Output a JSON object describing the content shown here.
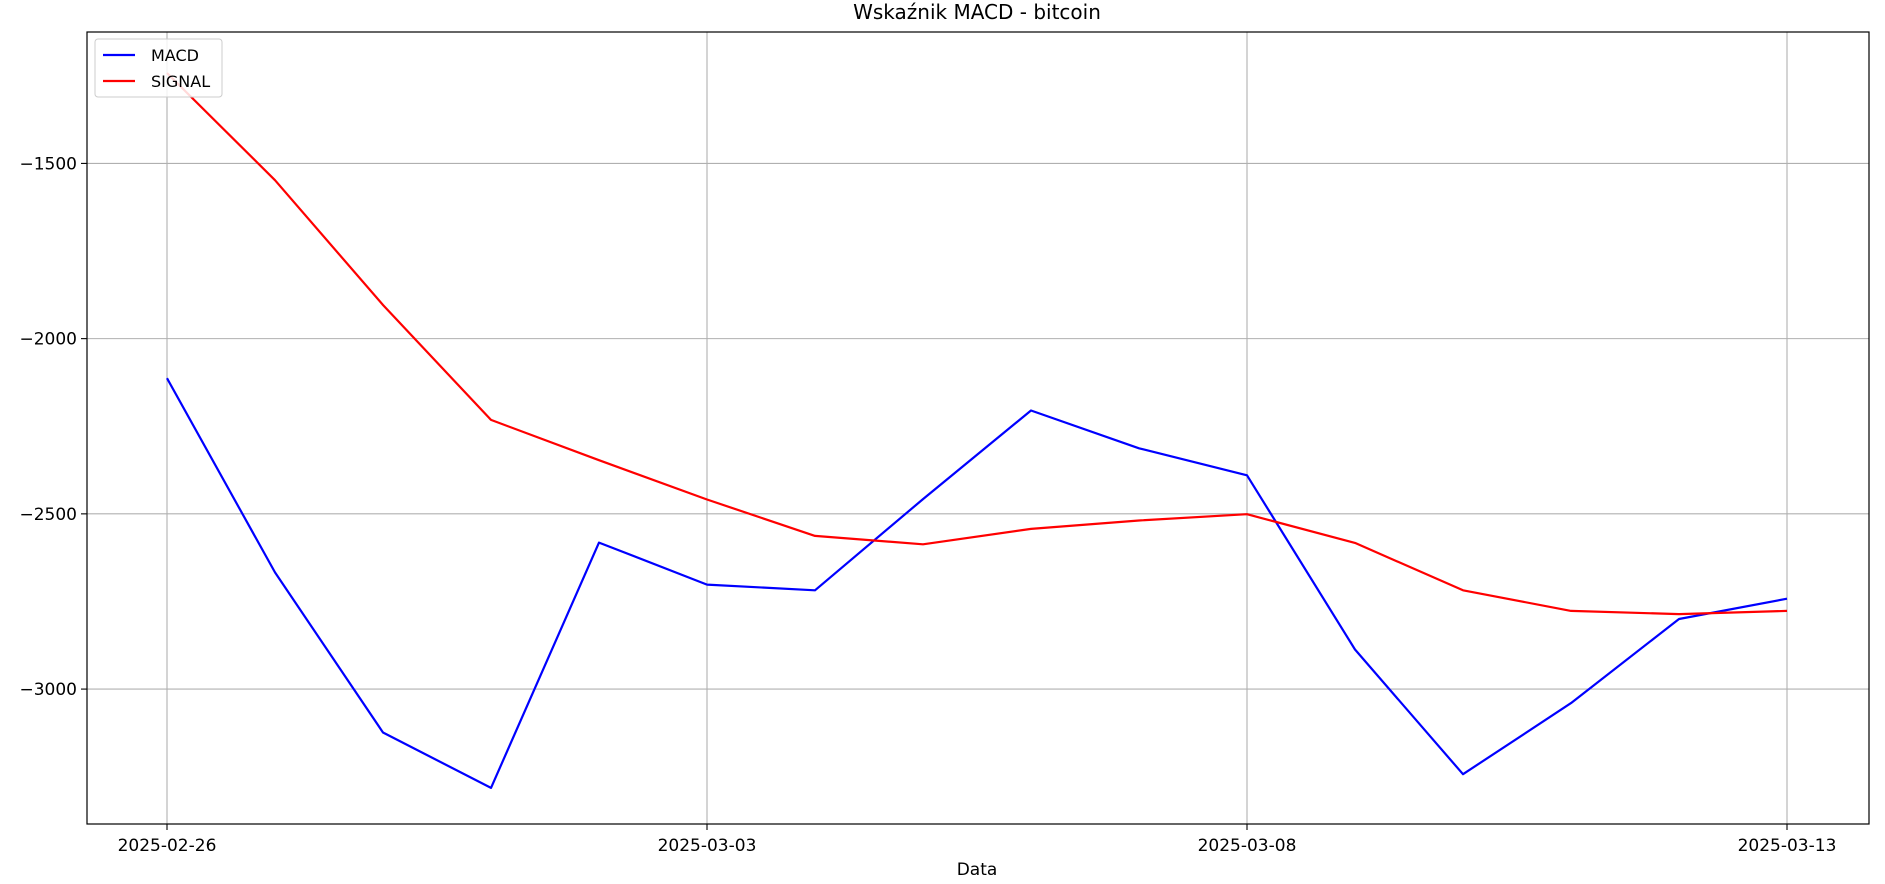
{
  "chart_data": {
    "type": "line",
    "title": "Wskaźnik MACD - bitcoin",
    "xlabel": "Data",
    "ylabel": "",
    "x": [
      "2025-02-26",
      "2025-02-27",
      "2025-02-28",
      "2025-03-01",
      "2025-03-02",
      "2025-03-03",
      "2025-03-04",
      "2025-03-05",
      "2025-03-06",
      "2025-03-07",
      "2025-03-08",
      "2025-03-09",
      "2025-03-10",
      "2025-03-11",
      "2025-03-12",
      "2025-03-13"
    ],
    "x_ticks": [
      "2025-02-26",
      "2025-03-03",
      "2025-03-08",
      "2025-03-13"
    ],
    "y_ticks": [
      -1500,
      -2000,
      -2500,
      -3000
    ],
    "y_tick_labels": [
      "−1500",
      "−2000",
      "−2500",
      "−3000"
    ],
    "ylim": [
      -3385,
      -1125
    ],
    "grid": true,
    "legend_position": "top-left",
    "series": [
      {
        "name": "MACD",
        "color": "#0000ff",
        "values": [
          -2113,
          -2667,
          -3124,
          -3282,
          -2582,
          -2702,
          -2718,
          -2458,
          -2205,
          -2313,
          -2390,
          -2887,
          -3243,
          -3040,
          -2800,
          -2742
        ]
      },
      {
        "name": "SIGNAL",
        "color": "#ff0000",
        "values": [
          -1242,
          -1548,
          -1904,
          -2232,
          -2347,
          -2459,
          -2563,
          -2587,
          -2543,
          -2519,
          -2501,
          -2583,
          -2718,
          -2777,
          -2786,
          -2777
        ]
      }
    ]
  }
}
